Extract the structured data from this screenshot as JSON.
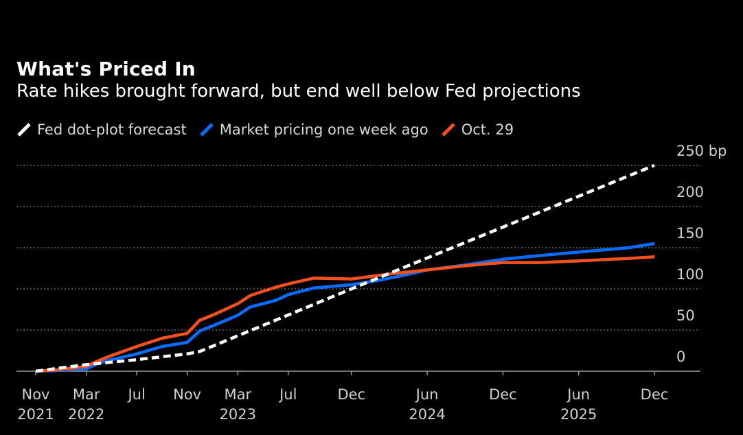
{
  "title": "What's Priced In",
  "subtitle": "Rate hikes brought forward, but end well below Fed projections",
  "legend": [
    {
      "label": "Fed dot-plot forecast",
      "color": "#ffffff"
    },
    {
      "label": "Market pricing one week ago",
      "color": "#0a6cff"
    },
    {
      "label": "Oct. 29",
      "color": "#f4511e"
    }
  ],
  "chart_data": {
    "type": "line",
    "title": "What's Priced In",
    "subtitle": "Rate hikes brought forward, but end well below Fed projections",
    "xlabel": "",
    "ylabel": "bp",
    "xlim": [
      2021.833,
      2025.917
    ],
    "ylim": [
      0,
      250
    ],
    "yticks": [
      0,
      50,
      100,
      150,
      200,
      250
    ],
    "ytick_labels": [
      "0",
      "50",
      "100",
      "150",
      "200",
      "250 bp"
    ],
    "grid": true,
    "xticks": [
      {
        "x": 2021.833,
        "label": "Nov",
        "year": "2021"
      },
      {
        "x": 2022.167,
        "label": "Mar",
        "year": "2022"
      },
      {
        "x": 2022.5,
        "label": "Jul",
        "year": ""
      },
      {
        "x": 2022.833,
        "label": "Nov",
        "year": ""
      },
      {
        "x": 2023.167,
        "label": "Mar",
        "year": "2023"
      },
      {
        "x": 2023.5,
        "label": "Jul",
        "year": ""
      },
      {
        "x": 2023.917,
        "label": "Dec",
        "year": ""
      },
      {
        "x": 2024.417,
        "label": "Jun",
        "year": "2024"
      },
      {
        "x": 2024.917,
        "label": "Dec",
        "year": ""
      },
      {
        "x": 2025.417,
        "label": "Jun",
        "year": "2025"
      },
      {
        "x": 2025.917,
        "label": "Dec",
        "year": ""
      }
    ],
    "series": [
      {
        "name": "Fed dot-plot forecast",
        "color": "#ffffff",
        "dash": true,
        "x": [
          2021.833,
          2022.0,
          2022.167,
          2022.5,
          2022.833,
          2022.917,
          2023.917,
          2024.917,
          2025.917
        ],
        "y": [
          0,
          4,
          8,
          14,
          21,
          24,
          100,
          175,
          250
        ]
      },
      {
        "name": "Market pricing one week ago",
        "color": "#0a6cff",
        "dash": false,
        "x": [
          2021.833,
          2022.0,
          2022.167,
          2022.25,
          2022.333,
          2022.5,
          2022.667,
          2022.833,
          2022.917,
          2023.0,
          2023.167,
          2023.25,
          2023.417,
          2023.5,
          2023.667,
          2023.917,
          2024.083,
          2024.25,
          2024.417,
          2024.667,
          2024.917,
          2025.083,
          2025.25,
          2025.5,
          2025.75,
          2025.917
        ],
        "y": [
          0,
          1,
          3,
          10,
          14,
          21,
          30,
          35,
          49,
          55,
          68,
          78,
          86,
          93,
          101,
          105,
          110,
          116,
          123,
          129,
          136,
          139,
          142,
          146,
          150,
          155
        ]
      },
      {
        "name": "Oct. 29",
        "color": "#f4511e",
        "dash": false,
        "x": [
          2021.833,
          2022.0,
          2022.167,
          2022.25,
          2022.333,
          2022.5,
          2022.667,
          2022.833,
          2022.917,
          2023.0,
          2023.167,
          2023.25,
          2023.417,
          2023.5,
          2023.667,
          2023.917,
          2024.167,
          2024.417,
          2024.667,
          2024.917,
          2025.167,
          2025.417,
          2025.75,
          2025.917
        ],
        "y": [
          0,
          2,
          6,
          13,
          19,
          30,
          40,
          46,
          62,
          68,
          82,
          92,
          102,
          106,
          113,
          112,
          118,
          123,
          128,
          132,
          132,
          134,
          137,
          139
        ]
      }
    ]
  }
}
